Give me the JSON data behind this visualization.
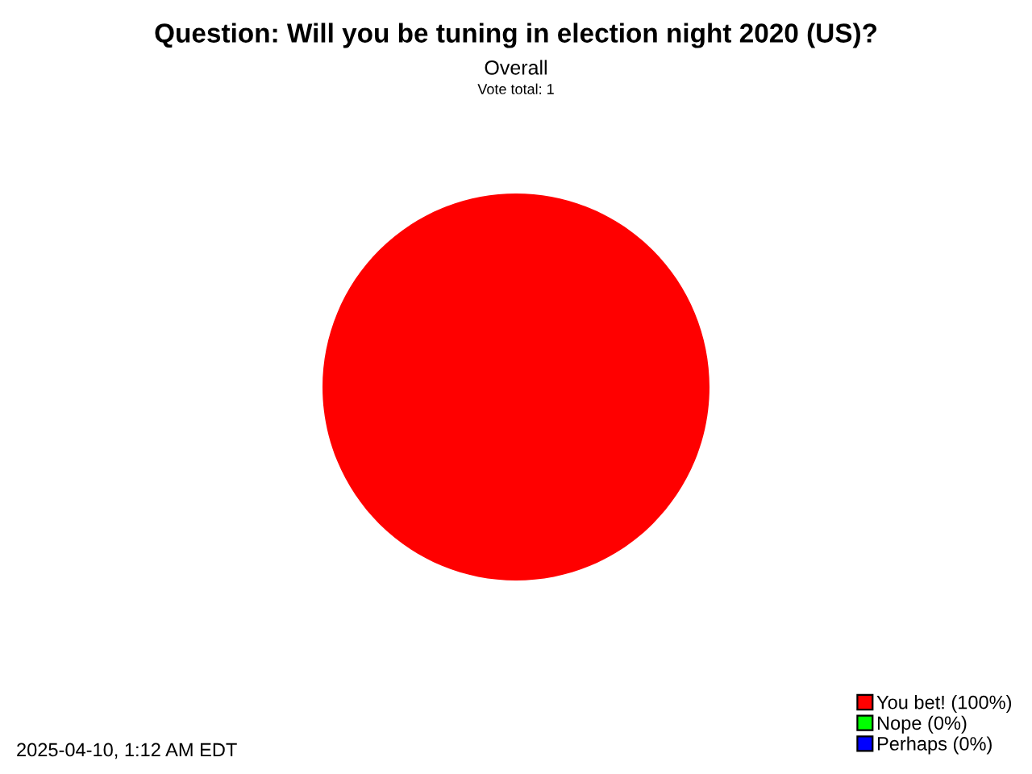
{
  "chart_data": {
    "type": "pie",
    "title": "Question: Will you be tuning in election night 2020 (US)?",
    "subtitle": "Overall",
    "annotations": [
      "Vote total: 1",
      "2025-04-10, 1:12 AM EDT"
    ],
    "categories": [
      "You bet! (100%)",
      "Nope (0%)",
      "Perhaps (0%)"
    ],
    "values": [
      100,
      0,
      0
    ],
    "colors": [
      "#ff0000",
      "#00ff00",
      "#0000ff"
    ],
    "legend": "bottom right"
  }
}
